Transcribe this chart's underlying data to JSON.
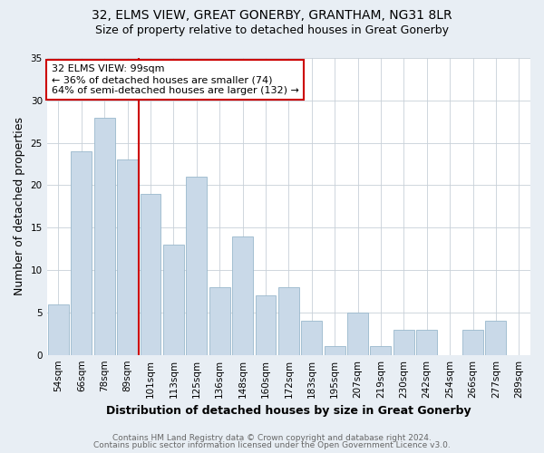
{
  "title_line1": "32, ELMS VIEW, GREAT GONERBY, GRANTHAM, NG31 8LR",
  "title_line2": "Size of property relative to detached houses in Great Gonerby",
  "xlabel": "Distribution of detached houses by size in Great Gonerby",
  "ylabel": "Number of detached properties",
  "categories": [
    "54sqm",
    "66sqm",
    "78sqm",
    "89sqm",
    "101sqm",
    "113sqm",
    "125sqm",
    "136sqm",
    "148sqm",
    "160sqm",
    "172sqm",
    "183sqm",
    "195sqm",
    "207sqm",
    "219sqm",
    "230sqm",
    "242sqm",
    "254sqm",
    "266sqm",
    "277sqm",
    "289sqm"
  ],
  "values": [
    6,
    24,
    28,
    23,
    19,
    13,
    21,
    8,
    14,
    7,
    8,
    4,
    1,
    5,
    1,
    3,
    3,
    0,
    3,
    4,
    0
  ],
  "bar_color": "#c9d9e8",
  "bar_edge_color": "#9ab8cc",
  "property_line_color": "#cc0000",
  "annotation_text": "32 ELMS VIEW: 99sqm\n← 36% of detached houses are smaller (74)\n64% of semi-detached houses are larger (132) →",
  "annotation_box_color": "white",
  "annotation_box_edge": "#cc0000",
  "ylim": [
    0,
    35
  ],
  "yticks": [
    0,
    5,
    10,
    15,
    20,
    25,
    30,
    35
  ],
  "footer_line1": "Contains HM Land Registry data © Crown copyright and database right 2024.",
  "footer_line2": "Contains public sector information licensed under the Open Government Licence v3.0.",
  "background_color": "#e8eef4",
  "plot_background_color": "#ffffff",
  "grid_color": "#c8d0d8",
  "title_fontsize": 10,
  "subtitle_fontsize": 9,
  "axis_label_fontsize": 9,
  "tick_fontsize": 7.5,
  "footer_fontsize": 6.5,
  "annotation_fontsize": 8
}
